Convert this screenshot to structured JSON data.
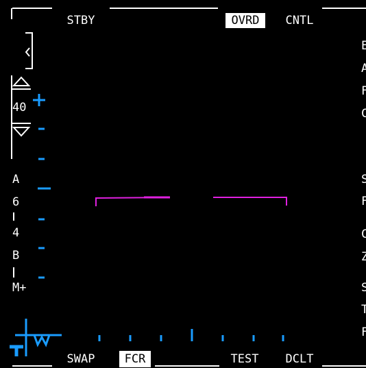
{
  "top": {
    "labels": [
      "STBY",
      "OVRD",
      "CNTL"
    ]
  },
  "left": {
    "labels": [
      "40",
      "A",
      "6",
      "4",
      "B",
      "M+"
    ]
  },
  "right": {
    "labels": [
      "E",
      "A",
      "F",
      "C",
      "S",
      "F",
      "C",
      "Z",
      "S",
      "T",
      "F"
    ]
  },
  "bottom": {
    "labels": [
      "SWAP",
      "FCR",
      "TEST",
      "DCLT"
    ]
  }
}
